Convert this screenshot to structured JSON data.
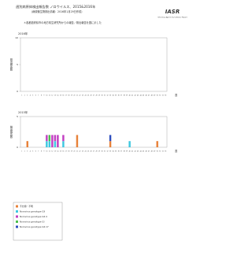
{
  "header": {
    "title": "週別病原体検出報告数 ノロウイルス、2015&2016年",
    "subtitle": "（病原微生物検出情報：2016年1月29日作成）",
    "note": "＊各都道府県市の地方衛生研究所からの報告／検出報告を図に示した",
    "logo": "IASR",
    "logo_sub": "Infectious Agents Surveillance Report"
  },
  "chart_data": [
    {
      "type": "bar",
      "title": "2016年",
      "y_label": "検出報告数",
      "x_label": "週",
      "categories": [
        1,
        2,
        3,
        4,
        5,
        6,
        7,
        8,
        9,
        10,
        11,
        12,
        13,
        14,
        15,
        16,
        17,
        18,
        19,
        20,
        21,
        22,
        23,
        24,
        25,
        26,
        27,
        28,
        29,
        30,
        31,
        32,
        33,
        34,
        35,
        36,
        37,
        38,
        39,
        40,
        41,
        42,
        43,
        44,
        45,
        46,
        47,
        48,
        49,
        50,
        51,
        52,
        53
      ],
      "series": [],
      "ylim": [
        0,
        10
      ],
      "yticks": [
        0,
        5,
        10
      ]
    },
    {
      "type": "bar",
      "title": "2015年",
      "y_label": "検出報告数",
      "x_label": "週",
      "categories": [
        1,
        2,
        3,
        4,
        5,
        6,
        7,
        8,
        9,
        10,
        11,
        12,
        13,
        14,
        15,
        16,
        17,
        18,
        19,
        20,
        21,
        22,
        23,
        24,
        25,
        26,
        27,
        28,
        29,
        30,
        31,
        32,
        33,
        34,
        35,
        36,
        37,
        38,
        39,
        40,
        41,
        42,
        43,
        44,
        45,
        46,
        47,
        48,
        49,
        50,
        51,
        52,
        53
      ],
      "ylim": [
        0,
        5
      ],
      "yticks": [
        0,
        5
      ],
      "series": [
        {
          "name": "不分類・不明",
          "color": "#e8823a",
          "values": [
            0,
            0,
            1,
            0,
            0,
            0,
            0,
            0,
            0,
            0,
            0,
            0,
            0,
            0,
            0,
            0,
            0,
            0,
            0,
            0,
            2,
            0,
            0,
            0,
            0,
            0,
            0,
            0,
            0,
            0,
            0,
            0,
            1,
            0,
            0,
            0,
            0,
            0,
            0,
            0,
            0,
            0,
            0,
            0,
            0,
            0,
            0,
            0,
            0,
            1,
            0,
            0,
            0
          ]
        },
        {
          "name": "Norovirus genotype GII",
          "color": "#3ec8e0",
          "values": [
            0,
            0,
            0,
            0,
            0,
            0,
            0,
            0,
            0,
            1,
            1,
            0,
            1,
            0,
            0,
            1,
            0,
            0,
            0,
            0,
            0,
            0,
            0,
            0,
            0,
            0,
            0,
            0,
            0,
            0,
            0,
            0,
            0,
            0,
            0,
            0,
            0,
            0,
            0,
            1,
            0,
            0,
            0,
            0,
            0,
            0,
            0,
            0,
            0,
            0,
            0,
            0,
            0
          ]
        },
        {
          "name": "Norovirus genotype GII.4",
          "color": "#c23fc2",
          "values": [
            0,
            0,
            0,
            0,
            0,
            0,
            0,
            0,
            0,
            1,
            0,
            2,
            1,
            2,
            0,
            1,
            0,
            0,
            0,
            0,
            0,
            0,
            0,
            0,
            0,
            0,
            0,
            0,
            0,
            0,
            0,
            0,
            0,
            0,
            0,
            0,
            0,
            0,
            0,
            0,
            0,
            0,
            0,
            0,
            0,
            0,
            0,
            0,
            0,
            0,
            0,
            0,
            0
          ]
        },
        {
          "name": "Norovirus genotype GI",
          "color": "#4cbf4c",
          "values": [
            0,
            0,
            0,
            0,
            0,
            0,
            0,
            0,
            0,
            0,
            1,
            0,
            0,
            0,
            0,
            0,
            0,
            0,
            0,
            0,
            0,
            0,
            0,
            0,
            0,
            0,
            0,
            0,
            0,
            0,
            0,
            0,
            0,
            0,
            0,
            0,
            0,
            0,
            0,
            0,
            0,
            0,
            0,
            0,
            0,
            0,
            0,
            0,
            0,
            0,
            0,
            0,
            0
          ]
        },
        {
          "name": "Norovirus genotype GII.17",
          "color": "#2f4fbf",
          "values": [
            0,
            0,
            0,
            0,
            0,
            0,
            0,
            0,
            0,
            0,
            0,
            0,
            0,
            0,
            0,
            0,
            0,
            0,
            0,
            0,
            0,
            0,
            0,
            0,
            0,
            0,
            0,
            0,
            0,
            0,
            0,
            0,
            1,
            0,
            0,
            0,
            0,
            0,
            0,
            0,
            0,
            0,
            0,
            0,
            0,
            0,
            0,
            0,
            0,
            0,
            0,
            0,
            0
          ]
        }
      ]
    }
  ]
}
